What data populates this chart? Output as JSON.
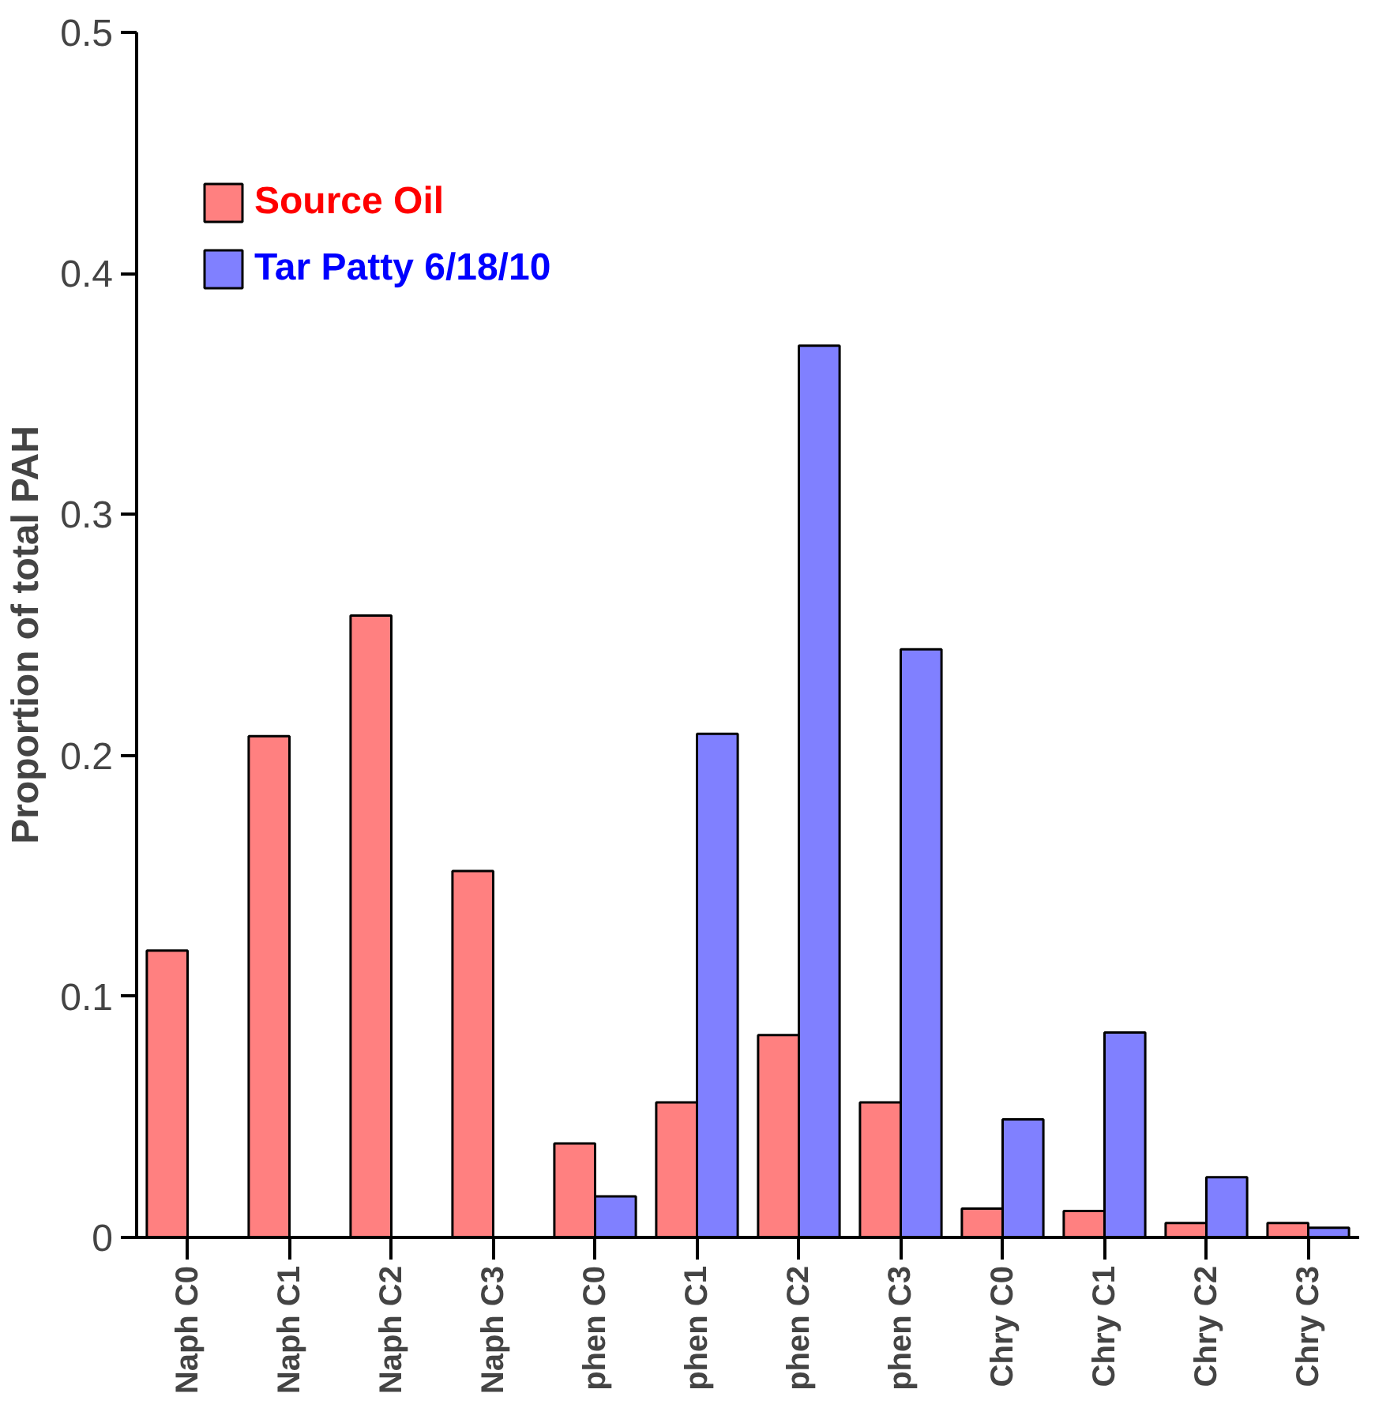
{
  "chart_data": {
    "type": "bar",
    "ylabel": "Proportion of total PAH",
    "categories": [
      "Naph C0",
      "Naph C1",
      "Naph C2",
      "Naph C3",
      "phen C0",
      "phen C1",
      "phen C2",
      "phen C3",
      "Chry C0",
      "Chry C1",
      "Chry C2",
      "Chry C3"
    ],
    "series": [
      {
        "name": "Source Oil",
        "color": "#ff8080",
        "values": [
          0.119,
          0.208,
          0.258,
          0.152,
          0.039,
          0.056,
          0.084,
          0.056,
          0.012,
          0.011,
          0.006,
          0.006
        ]
      },
      {
        "name": "Tar Patty 6/18/10",
        "color": "#8080ff",
        "values": [
          null,
          null,
          null,
          null,
          0.017,
          0.209,
          0.37,
          0.244,
          0.049,
          0.085,
          0.025,
          0.004
        ]
      }
    ],
    "ylim": [
      0,
      0.5
    ],
    "yticks": [
      0,
      0.1,
      0.2,
      0.3,
      0.4,
      0.5
    ],
    "grid": false,
    "legend": "top left"
  }
}
